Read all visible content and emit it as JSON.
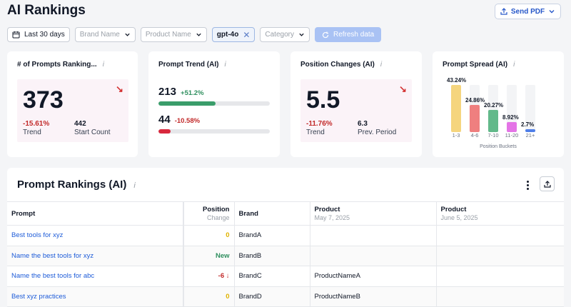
{
  "header": {
    "title": "AI Rankings",
    "send_pdf_label": "Send PDF"
  },
  "filters": {
    "date_range": "Last 30 days",
    "brand_placeholder": "Brand Name",
    "product_placeholder": "Product Name",
    "model_tag": "gpt-4o",
    "category_placeholder": "Category",
    "refresh_label": "Refresh data"
  },
  "cards": {
    "prompts_ranking": {
      "title": "# of Prompts Ranking...",
      "value": "373",
      "trend_pct": "-15.61%",
      "trend_label": "Trend",
      "start_count": "442",
      "start_count_label": "Start Count"
    },
    "prompt_trend": {
      "title": "Prompt Trend (AI)",
      "rows": [
        {
          "value": "213",
          "pct": "+51.2%",
          "progress": 0.51,
          "color": "#3a9d6a"
        },
        {
          "value": "44",
          "pct": "-10.58%",
          "progress": 0.11,
          "color": "#d8283d"
        }
      ]
    },
    "position_changes": {
      "title": "Position Changes (AI)",
      "value": "5.5",
      "trend_pct": "-11.76%",
      "trend_label": "Trend",
      "prev_value": "6.3",
      "prev_label": "Prev. Period"
    },
    "prompt_spread": {
      "title": "Prompt Spread (AI)"
    }
  },
  "chart_data": {
    "type": "bar",
    "title": "Prompt Spread (AI)",
    "xlabel": "Position Buckets",
    "ylabel": "",
    "categories": [
      "1-3",
      "4-6",
      "7-10",
      "11-20",
      "21+"
    ],
    "values": [
      43.24,
      24.86,
      20.27,
      8.92,
      2.7
    ],
    "value_labels": [
      "43.24%",
      "24.86%",
      "20.27%",
      "8.92%",
      "2.7%"
    ],
    "colors": [
      "#f5d57e",
      "#ef7f7f",
      "#62b98a",
      "#e474e6",
      "#4f7fe8"
    ],
    "ylim": [
      0,
      43.24
    ]
  },
  "table": {
    "title": "Prompt Rankings (AI)",
    "columns": {
      "prompt": "Prompt",
      "position": "Position",
      "position_sub": "Change",
      "brand": "Brand",
      "product1": "Product",
      "product1_date": "May 7, 2025",
      "product2": "Product",
      "product2_date": "June 5, 2025"
    },
    "rows": [
      {
        "prompt": "Best tools for xyz",
        "change": "0",
        "brand": "BrandA",
        "product1": "",
        "product2": ""
      },
      {
        "prompt": "Name the best tools for xyz",
        "change": "New",
        "brand": "BrandB",
        "product1": "",
        "product2": ""
      },
      {
        "prompt": "Name the best tools for abc",
        "change": "-6 ↓",
        "brand": "BrandC",
        "product1": "ProductNameA",
        "product2": ""
      },
      {
        "prompt": "Best xyz practices",
        "change": "0",
        "brand": "BrandD",
        "product1": "ProductNameB",
        "product2": ""
      }
    ]
  }
}
